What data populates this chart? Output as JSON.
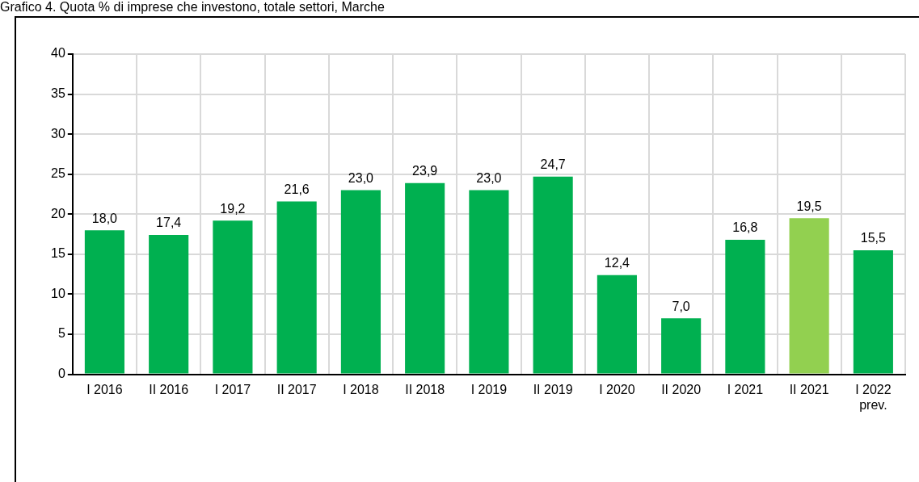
{
  "chart_data": {
    "type": "bar",
    "title": "Grafico 4. Quota % di imprese che investono, totale settori, Marche",
    "categories": [
      "I 2016",
      "II 2016",
      "I 2017",
      "II 2017",
      "I 2018",
      "II 2018",
      "I 2019",
      "II 2019",
      "I 2020",
      "II 2020",
      "I 2021",
      "II 2021",
      "I 2022\nprev."
    ],
    "values": [
      18.0,
      17.4,
      19.2,
      21.6,
      23.0,
      23.9,
      23.0,
      24.7,
      12.4,
      7.0,
      16.8,
      19.5,
      15.5
    ],
    "value_labels": [
      "18,0",
      "17,4",
      "19,2",
      "21,6",
      "23,0",
      "23,9",
      "23,0",
      "24,7",
      "12,4",
      "7,0",
      "16,8",
      "19,5",
      "15,5"
    ],
    "colors": [
      "#00b050",
      "#00b050",
      "#00b050",
      "#00b050",
      "#00b050",
      "#00b050",
      "#00b050",
      "#00b050",
      "#00b050",
      "#00b050",
      "#00b050",
      "#92d050",
      "#00b050"
    ],
    "ylim": [
      0,
      40
    ],
    "yticks": [
      0,
      5,
      10,
      15,
      20,
      25,
      30,
      35,
      40
    ],
    "grid": true,
    "legend": false
  }
}
